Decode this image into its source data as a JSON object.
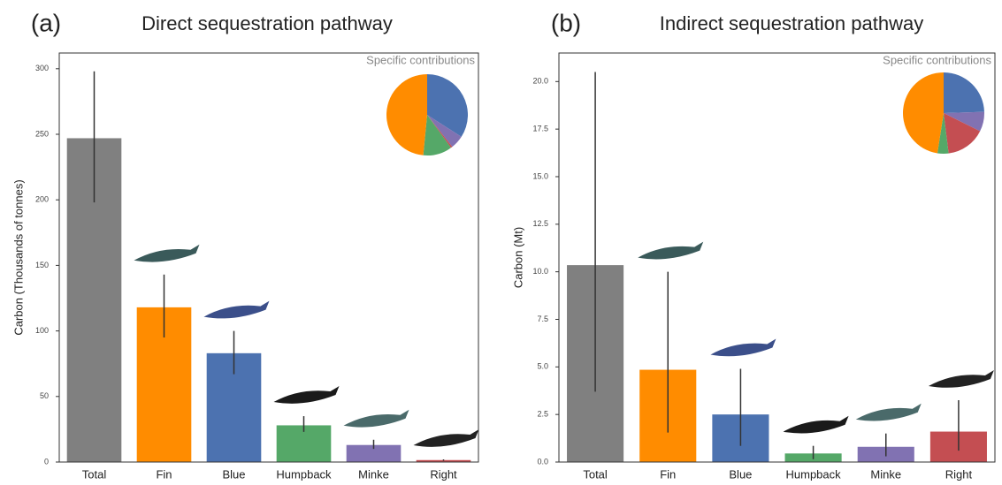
{
  "chart_data": [
    {
      "type": "bar",
      "panel_label": "(a)",
      "title": "Direct sequestration pathway",
      "ylabel": "Carbon  (Thousands of tonnes)",
      "inset_title": "Specific contributions",
      "categories": [
        "Total",
        "Fin",
        "Blue",
        "Humpback",
        "Minke",
        "Right"
      ],
      "values": [
        247,
        118,
        83,
        28,
        13,
        1.5
      ],
      "err_low": [
        198,
        95,
        67,
        23,
        10,
        1
      ],
      "err_high": [
        298,
        143,
        100,
        35,
        17,
        2
      ],
      "colors": [
        "#808080",
        "#ff8c00",
        "#4c72b0",
        "#55a868",
        "#8172b2",
        "#c44e52"
      ],
      "ylim": [
        0,
        312
      ],
      "yticks": [
        0,
        50,
        100,
        150,
        200,
        250,
        300
      ]
    },
    {
      "type": "bar",
      "panel_label": "(b)",
      "title": "Indirect sequestration pathway",
      "ylabel": "Carbon (Mt)",
      "inset_title": "Specific contributions",
      "categories": [
        "Total",
        "Fin",
        "Blue",
        "Humpback",
        "Minke",
        "Right"
      ],
      "values": [
        10.35,
        4.85,
        2.5,
        0.45,
        0.8,
        1.6
      ],
      "err_low": [
        3.7,
        1.55,
        0.85,
        0.15,
        0.3,
        0.6
      ],
      "err_high": [
        20.5,
        10,
        4.9,
        0.85,
        1.5,
        3.25
      ],
      "colors": [
        "#808080",
        "#ff8c00",
        "#4c72b0",
        "#55a868",
        "#8172b2",
        "#c44e52"
      ],
      "ylim": [
        0,
        21.5
      ],
      "yticks": [
        {
          "value": 0,
          "label": "0.0"
        },
        2.5,
        {
          "value": 5,
          "label": "5.0"
        },
        7.5,
        {
          "value": 10,
          "label": "10.0"
        },
        12.5,
        {
          "value": 15,
          "label": "15.0"
        },
        17.5,
        {
          "value": 20,
          "label": "20.0"
        }
      ]
    }
  ]
}
